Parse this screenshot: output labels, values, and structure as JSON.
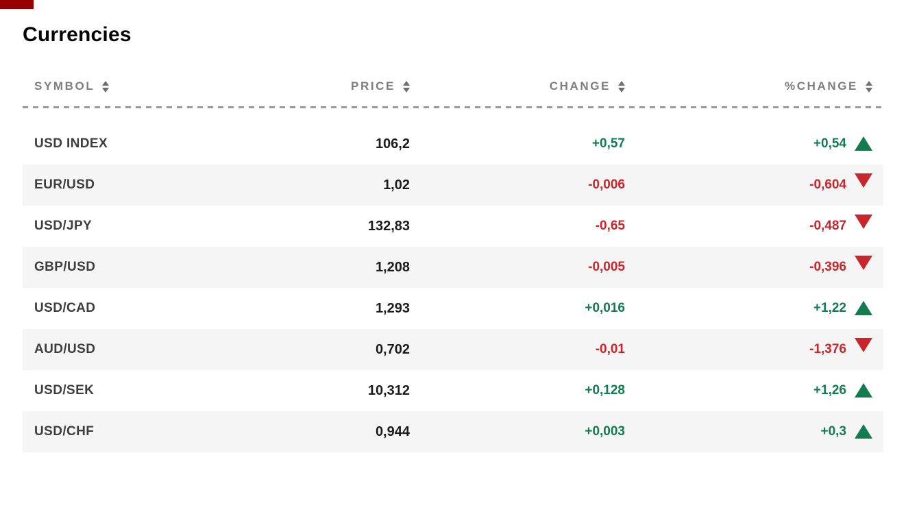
{
  "page_title": "Currencies",
  "table": {
    "headers": [
      {
        "label": "SYMBOL"
      },
      {
        "label": "PRICE"
      },
      {
        "label": "CHANGE"
      },
      {
        "label": "%CHANGE"
      }
    ],
    "rows": [
      {
        "symbol": "USD INDEX",
        "price": "106,2",
        "change": "+0,57",
        "pct_change": "+0,54",
        "direction": "up"
      },
      {
        "symbol": "EUR/USD",
        "price": "1,02",
        "change": "-0,006",
        "pct_change": "-0,604",
        "direction": "down"
      },
      {
        "symbol": "USD/JPY",
        "price": "132,83",
        "change": "-0,65",
        "pct_change": "-0,487",
        "direction": "down"
      },
      {
        "symbol": "GBP/USD",
        "price": "1,208",
        "change": "-0,005",
        "pct_change": "-0,396",
        "direction": "down"
      },
      {
        "symbol": "USD/CAD",
        "price": "1,293",
        "change": "+0,016",
        "pct_change": "+1,22",
        "direction": "up"
      },
      {
        "symbol": "AUD/USD",
        "price": "0,702",
        "change": "-0,01",
        "pct_change": "-1,376",
        "direction": "down"
      },
      {
        "symbol": "USD/SEK",
        "price": "10,312",
        "change": "+0,128",
        "pct_change": "+1,26",
        "direction": "up"
      },
      {
        "symbol": "USD/CHF",
        "price": "0,944",
        "change": "+0,003",
        "pct_change": "+0,3",
        "direction": "up"
      }
    ]
  },
  "icons": {
    "sort": "up-down-triangles",
    "trend_up": "filled-up-triangle",
    "trend_down": "filled-down-triangle"
  },
  "colors": {
    "up_green": "#107c50",
    "down_red": "#c9252b",
    "header_gray": "#7d7d7d",
    "alt_row_bg": "#f5f5f5",
    "top_bar_red": "#990000"
  }
}
